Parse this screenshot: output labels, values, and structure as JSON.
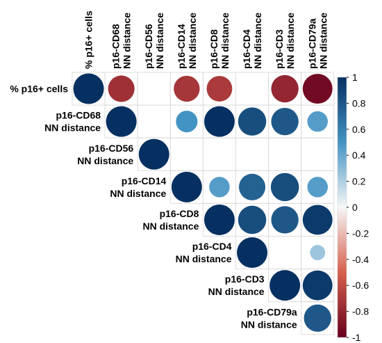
{
  "chart_data": {
    "type": "heatmap",
    "subtype": "upper-triangular correlation plot (circles)",
    "variables": [
      [
        "% p16+ cells"
      ],
      [
        "p16-CD68",
        "NN distance"
      ],
      [
        "p16-CD56",
        "NN distance"
      ],
      [
        "p16-CD14",
        "NN distance"
      ],
      [
        "p16-CD8",
        "NN distance"
      ],
      [
        "p16-CD4",
        "NN distance"
      ],
      [
        "p16-CD3",
        "NN distance"
      ],
      [
        "p16-CD79a",
        "NN distance"
      ]
    ],
    "matrix": [
      [
        1.0,
        -0.75,
        null,
        -0.72,
        -0.7,
        null,
        -0.8,
        -0.95
      ],
      [
        null,
        1.0,
        null,
        0.5,
        1.0,
        0.85,
        0.8,
        0.45
      ],
      [
        null,
        null,
        1.0,
        null,
        null,
        null,
        null,
        null
      ],
      [
        null,
        null,
        null,
        1.0,
        0.45,
        0.75,
        0.85,
        0.45
      ],
      [
        null,
        null,
        null,
        null,
        1.0,
        0.85,
        0.8,
        0.95
      ],
      [
        null,
        null,
        null,
        null,
        null,
        1.0,
        null,
        0.25
      ],
      [
        null,
        null,
        null,
        null,
        null,
        null,
        1.0,
        0.95
      ],
      [
        null,
        null,
        null,
        null,
        null,
        null,
        null,
        0.8
      ]
    ],
    "colorbar": {
      "range": [
        -1,
        1
      ],
      "ticks": [
        "1",
        "0.8",
        "0.6",
        "0.4",
        "0.2",
        "0",
        "-0.2",
        "-0.4",
        "-0.6",
        "-0.8",
        "-1"
      ],
      "tick_values": [
        1,
        0.8,
        0.6,
        0.4,
        0.2,
        0,
        -0.2,
        -0.4,
        -0.6,
        -0.8,
        -1
      ],
      "placement": "right",
      "colors": {
        "neg_strong": "#67001f",
        "neg_mid": "#d6604d",
        "neutral": "#f7f7f7",
        "pos_mid": "#4393c3",
        "pos_strong": "#053061"
      }
    },
    "grid": true
  }
}
